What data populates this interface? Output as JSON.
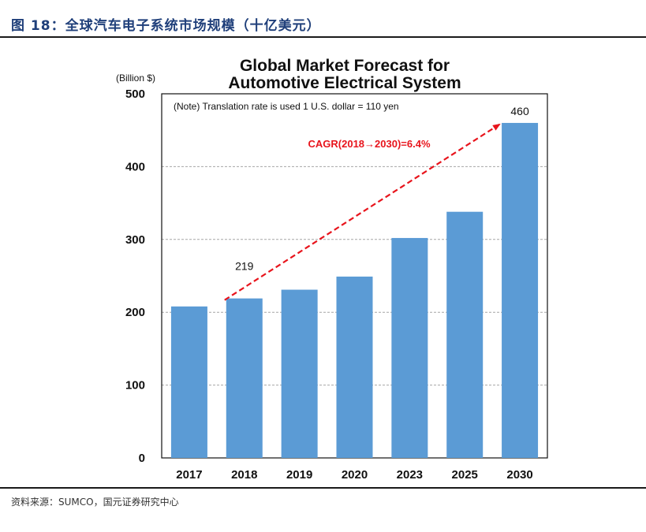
{
  "figure": {
    "title": "图 18：全球汽车电子系统市场规模（十亿美元）",
    "source": "资料来源：SUMCO，国元证券研究中心"
  },
  "chart_data": {
    "type": "bar",
    "title_lines": [
      "Global Market Forecast for",
      "Automotive Electrical System"
    ],
    "unit_label": "(Billion $)",
    "note": "(Note) Translation rate is used 1 U.S. dollar = 110 yen",
    "categories": [
      "2017",
      "2018",
      "2019",
      "2020",
      "2023",
      "2025",
      "2030"
    ],
    "values": [
      208,
      219,
      231,
      249,
      302,
      338,
      460
    ],
    "data_labels": {
      "1": "219",
      "6": "460"
    },
    "ylim": [
      0,
      500
    ],
    "yticks": [
      0,
      100,
      200,
      300,
      400,
      500
    ],
    "grid": true,
    "bar_color": "#5b9bd5",
    "annotation": {
      "text": "CAGR(2018→2030)=6.4%",
      "color": "#e8141c",
      "from_category": "2018",
      "to_category": "2030"
    }
  }
}
